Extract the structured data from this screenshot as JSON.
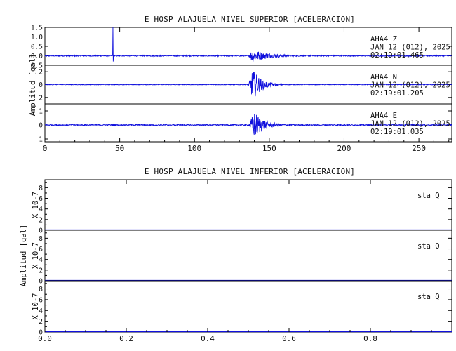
{
  "figure": {
    "accent": "#1010dd",
    "frame_color": "#000000"
  },
  "chart_data": [
    {
      "type": "line",
      "title": "E HOSP ALAJUELA NIVEL SUPERIOR [ACELERACION]",
      "ylabel": "Amplitud [gal]",
      "xlabel": "",
      "xlim": [
        0,
        272
      ],
      "xticks": [
        0,
        50,
        100,
        150,
        200,
        250
      ],
      "xtick_labels": [
        "0",
        "50",
        "100",
        "150",
        "200",
        "250"
      ],
      "grid": false,
      "series": [
        {
          "name": "AHA4  Z",
          "station": "AHA4",
          "component": "Z",
          "date": "JAN 12 (012), 2025",
          "time": "02:19:01.465",
          "ylim": [
            -0.5,
            1.5
          ],
          "yticks": [
            -0.5,
            0.0,
            0.5,
            1.0,
            1.5
          ],
          "ytick_labels": [
            "0.5",
            "0.0",
            "0.5",
            "1.0",
            "1.5"
          ],
          "noise_amp": 0.03,
          "event_start": 136,
          "event_peak_time": 138.5,
          "event_peak": 0.35,
          "event_decay": 12,
          "coda_start": 148,
          "coda_amp": 0.08,
          "spike_time": 45.5,
          "spike_max": 1.5,
          "spike_min": -0.3
        },
        {
          "name": "AHA4  N",
          "station": "AHA4",
          "component": "N",
          "date": "JAN 12 (012), 2025",
          "time": "02:19:01.205",
          "ylim": [
            -3,
            3
          ],
          "yticks": [
            -2,
            0,
            2
          ],
          "ytick_labels": [
            "2",
            "0",
            "2"
          ],
          "noise_amp": 0.05,
          "event_start": 136,
          "event_peak_time": 139,
          "event_peak": 2.4,
          "event_decay": 6,
          "coda_start": 148,
          "coda_amp": 0.15
        },
        {
          "name": "AHA4  E",
          "station": "AHA4",
          "component": "E",
          "date": "JAN 12 (012), 2025",
          "time": "02:19:01.035",
          "ylim": [
            -1.2,
            1.5
          ],
          "yticks": [
            -1,
            0,
            1
          ],
          "ytick_labels": [
            "1",
            "0",
            "1"
          ],
          "noise_amp": 0.04,
          "event_start": 136,
          "event_peak_time": 140,
          "event_peak": 0.95,
          "event_decay": 7,
          "coda_start": 150,
          "coda_amp": 0.12
        }
      ]
    },
    {
      "type": "line",
      "title": "E HOSP ALAJUELA NIVEL INFERIOR [ACELERACION]",
      "ylabel": "Amplitud [gal]",
      "xlabel": "",
      "xlim": [
        0,
        1.0
      ],
      "xticks": [
        0.0,
        0.2,
        0.4,
        0.6,
        0.8
      ],
      "xtick_labels": [
        "0.0",
        "0.2",
        "0.4",
        "0.6",
        "0.8"
      ],
      "grid": false,
      "series": [
        {
          "name": "sta  Q",
          "scale_label": "X 10-7",
          "ylim": [
            0,
            9.5
          ],
          "yticks": [
            0,
            2,
            4,
            6,
            8
          ],
          "ytick_labels": [
            "0",
            "2",
            "4",
            "6",
            "8"
          ],
          "values": [
            0,
            0
          ]
        },
        {
          "name": "sta  Q",
          "scale_label": "X 10-7",
          "ylim": [
            0,
            9.5
          ],
          "yticks": [
            0,
            2,
            4,
            6,
            8
          ],
          "ytick_labels": [
            "0",
            "2",
            "4",
            "6",
            "8"
          ],
          "values": [
            0,
            0
          ]
        },
        {
          "name": "sta  Q",
          "scale_label": "X 10-7",
          "ylim": [
            0,
            9.5
          ],
          "yticks": [
            0,
            2,
            4,
            6,
            8
          ],
          "ytick_labels": [
            "0",
            "2",
            "4",
            "6",
            "8"
          ],
          "values": [
            0,
            0
          ]
        }
      ]
    }
  ]
}
